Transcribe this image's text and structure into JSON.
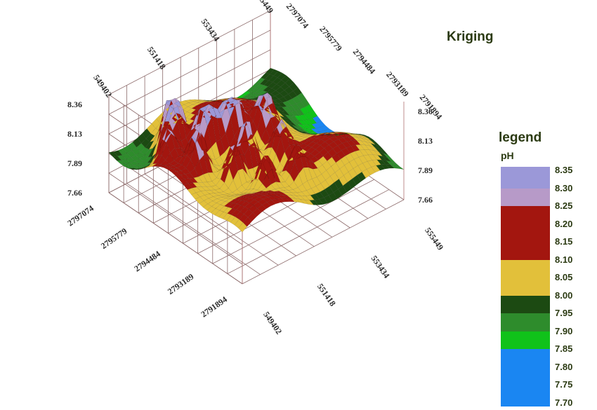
{
  "chart_data": {
    "type": "surface",
    "title": "Kriging",
    "x_axis": {
      "ticks": [
        "549402",
        "551418",
        "553434",
        "555449"
      ]
    },
    "y_axis": {
      "ticks": [
        "2797074",
        "2795779",
        "2794484",
        "2793189",
        "2791894"
      ]
    },
    "z_axis": {
      "ticks": [
        "7.66",
        "7.89",
        "8.13",
        "8.36"
      ],
      "range": [
        7.66,
        8.36
      ]
    },
    "legend": {
      "title": "legend",
      "variable": "pH",
      "levels": [
        "8.35",
        "8.30",
        "8.25",
        "8.20",
        "8.15",
        "8.10",
        "8.05",
        "8.00",
        "7.95",
        "7.90",
        "7.85",
        "7.80",
        "7.75",
        "7.70"
      ],
      "bands": [
        {
          "from": 8.3,
          "to": 8.35,
          "color": "#9b98d8"
        },
        {
          "from": 8.25,
          "to": 8.3,
          "color": "#b79ac8"
        },
        {
          "from": 8.1,
          "to": 8.25,
          "color": "#a3160f"
        },
        {
          "from": 8.0,
          "to": 8.1,
          "color": "#e2c03a"
        },
        {
          "from": 7.95,
          "to": 8.0,
          "color": "#1c4a12"
        },
        {
          "from": 7.9,
          "to": 7.95,
          "color": "#2e8c2c"
        },
        {
          "from": 7.85,
          "to": 7.9,
          "color": "#10c21a"
        },
        {
          "from": 7.7,
          "to": 7.85,
          "color": "#1a86f2"
        }
      ]
    }
  }
}
